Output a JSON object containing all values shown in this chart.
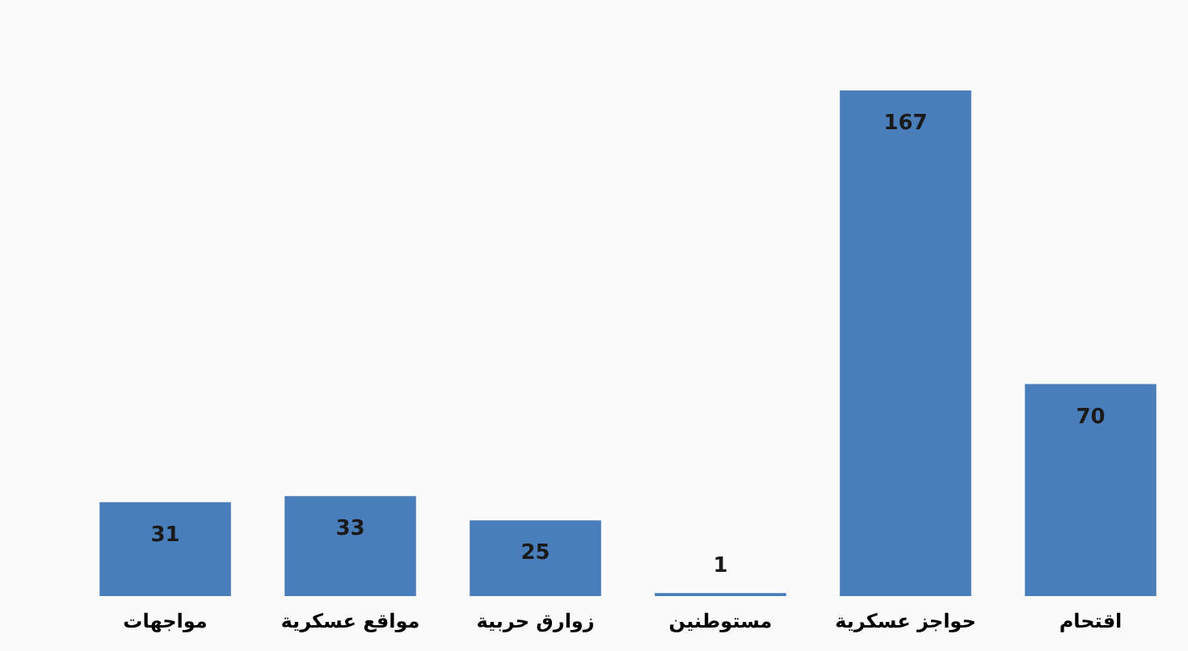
{
  "chart_data": {
    "type": "bar",
    "categories": [
      "مواجهات",
      "مواقع عسكرية",
      "زوارق حربية",
      "مستوطنين",
      "حواجز عسكرية",
      "اقتحام"
    ],
    "values": [
      31,
      33,
      25,
      1,
      167,
      70
    ],
    "color": "#4a7ebb",
    "data_labels": true,
    "tick_labels": "x"
  }
}
